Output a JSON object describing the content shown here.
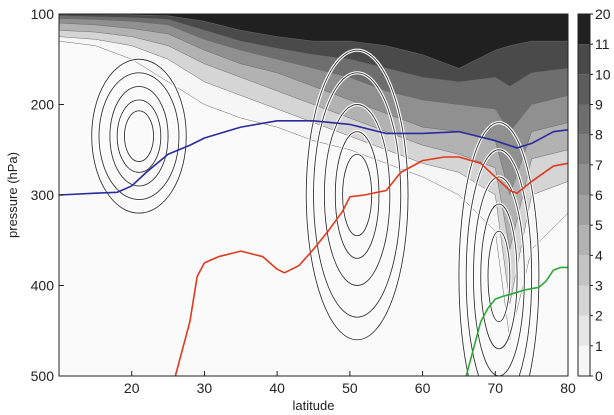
{
  "chart_data": {
    "type": "heatmap",
    "title": "",
    "xlabel": "latitude",
    "ylabel": "pressure (hPa)",
    "xlim": [
      10,
      80
    ],
    "ylim": [
      500,
      100
    ],
    "x_ticks": [
      20,
      30,
      40,
      50,
      60,
      70,
      80
    ],
    "y_ticks": [
      100,
      200,
      300,
      400,
      500
    ],
    "grid": false,
    "colorbar": {
      "levels": [
        "0",
        "1",
        "2",
        "3",
        "4",
        "5",
        "6",
        "7",
        "8",
        "9",
        "10",
        "11",
        "20"
      ],
      "colors": [
        "#ffffff",
        "#f6f6f6",
        "#e6e6e6",
        "#d5d5d5",
        "#c4c4c4",
        "#b2b2b2",
        "#a1a1a1",
        "#909090",
        "#7f7f7f",
        "#6e6e6e",
        "#5d5d5d",
        "#4a4a4a",
        "#202020"
      ]
    },
    "shaded_field": {
      "description_levels_hPa": "upper boundaries of shaded bands by latitude",
      "lat": [
        10,
        15,
        20,
        25,
        30,
        35,
        40,
        45,
        50,
        55,
        60,
        65,
        70,
        72,
        75,
        80
      ],
      "bands": [
        {
          "level": 1,
          "p": [
            130,
            135,
            150,
            175,
            200,
            215,
            225,
            240,
            250,
            265,
            280,
            300,
            340,
            460,
            360,
            320
          ]
        },
        {
          "level": 3,
          "p": [
            125,
            128,
            135,
            150,
            175,
            190,
            205,
            220,
            235,
            250,
            265,
            275,
            300,
            420,
            300,
            285
          ]
        },
        {
          "level": 5,
          "p": [
            118,
            120,
            125,
            135,
            155,
            170,
            185,
            200,
            215,
            230,
            245,
            255,
            270,
            360,
            260,
            250
          ]
        },
        {
          "level": 7,
          "p": [
            110,
            112,
            116,
            122,
            140,
            155,
            165,
            180,
            195,
            210,
            225,
            230,
            240,
            300,
            230,
            220
          ]
        },
        {
          "level": 9,
          "p": [
            105,
            106,
            108,
            112,
            128,
            140,
            150,
            160,
            170,
            185,
            195,
            200,
            205,
            230,
            200,
            190
          ]
        },
        {
          "level": 11,
          "p": [
            102,
            103,
            104,
            106,
            118,
            130,
            138,
            145,
            150,
            160,
            170,
            175,
            170,
            180,
            165,
            160
          ]
        },
        {
          "level": 20,
          "p": [
            100,
            100,
            101,
            102,
            108,
            118,
            125,
            130,
            130,
            135,
            145,
            160,
            140,
            135,
            130,
            130
          ]
        }
      ]
    },
    "series": [
      {
        "name": "",
        "color": "#2b2b9b",
        "x": [
          10,
          15,
          18,
          20,
          22,
          25,
          28,
          30,
          35,
          40,
          45,
          50,
          55,
          60,
          65,
          70,
          73,
          75,
          78,
          80
        ],
        "y": [
          300,
          298,
          297,
          290,
          275,
          255,
          245,
          237,
          225,
          218,
          218,
          222,
          232,
          232,
          230,
          240,
          248,
          243,
          230,
          228
        ]
      },
      {
        "name": "",
        "color": "#e03a1e",
        "x": [
          26,
          28,
          29,
          30,
          32,
          35,
          38,
          40,
          41,
          43,
          45,
          47,
          49,
          50,
          52,
          55,
          57,
          60,
          63,
          65,
          68,
          70,
          72,
          73,
          75,
          78,
          80
        ],
        "y": [
          500,
          440,
          390,
          375,
          368,
          362,
          368,
          382,
          386,
          378,
          360,
          340,
          318,
          302,
          300,
          295,
          275,
          262,
          258,
          258,
          265,
          280,
          295,
          298,
          285,
          268,
          265
        ]
      },
      {
        "name": "",
        "color": "#2ea83a",
        "x": [
          66,
          67,
          68,
          69,
          70,
          71,
          72,
          74,
          76,
          77,
          78,
          79,
          80
        ],
        "y": [
          500,
          470,
          440,
          425,
          415,
          412,
          410,
          405,
          402,
          395,
          383,
          380,
          380
        ]
      }
    ],
    "contours": [
      {
        "center_lat": 21,
        "center_p": 235,
        "rings": [
          [
            2,
            28
          ],
          [
            3,
            40
          ],
          [
            4,
            55
          ],
          [
            5.5,
            70
          ],
          [
            6.5,
            85
          ]
        ]
      },
      {
        "center_lat": 51,
        "center_p": 300,
        "rings": [
          [
            2,
            45
          ],
          [
            3,
            70
          ],
          [
            4.5,
            100
          ],
          [
            6,
            135
          ],
          [
            7,
            160
          ]
        ]
      },
      {
        "center_lat": 70.5,
        "center_p": 390,
        "rings": [
          [
            1.5,
            50
          ],
          [
            2.5,
            80
          ],
          [
            3.5,
            110
          ],
          [
            4.5,
            140
          ],
          [
            5.5,
            170
          ]
        ]
      }
    ]
  }
}
